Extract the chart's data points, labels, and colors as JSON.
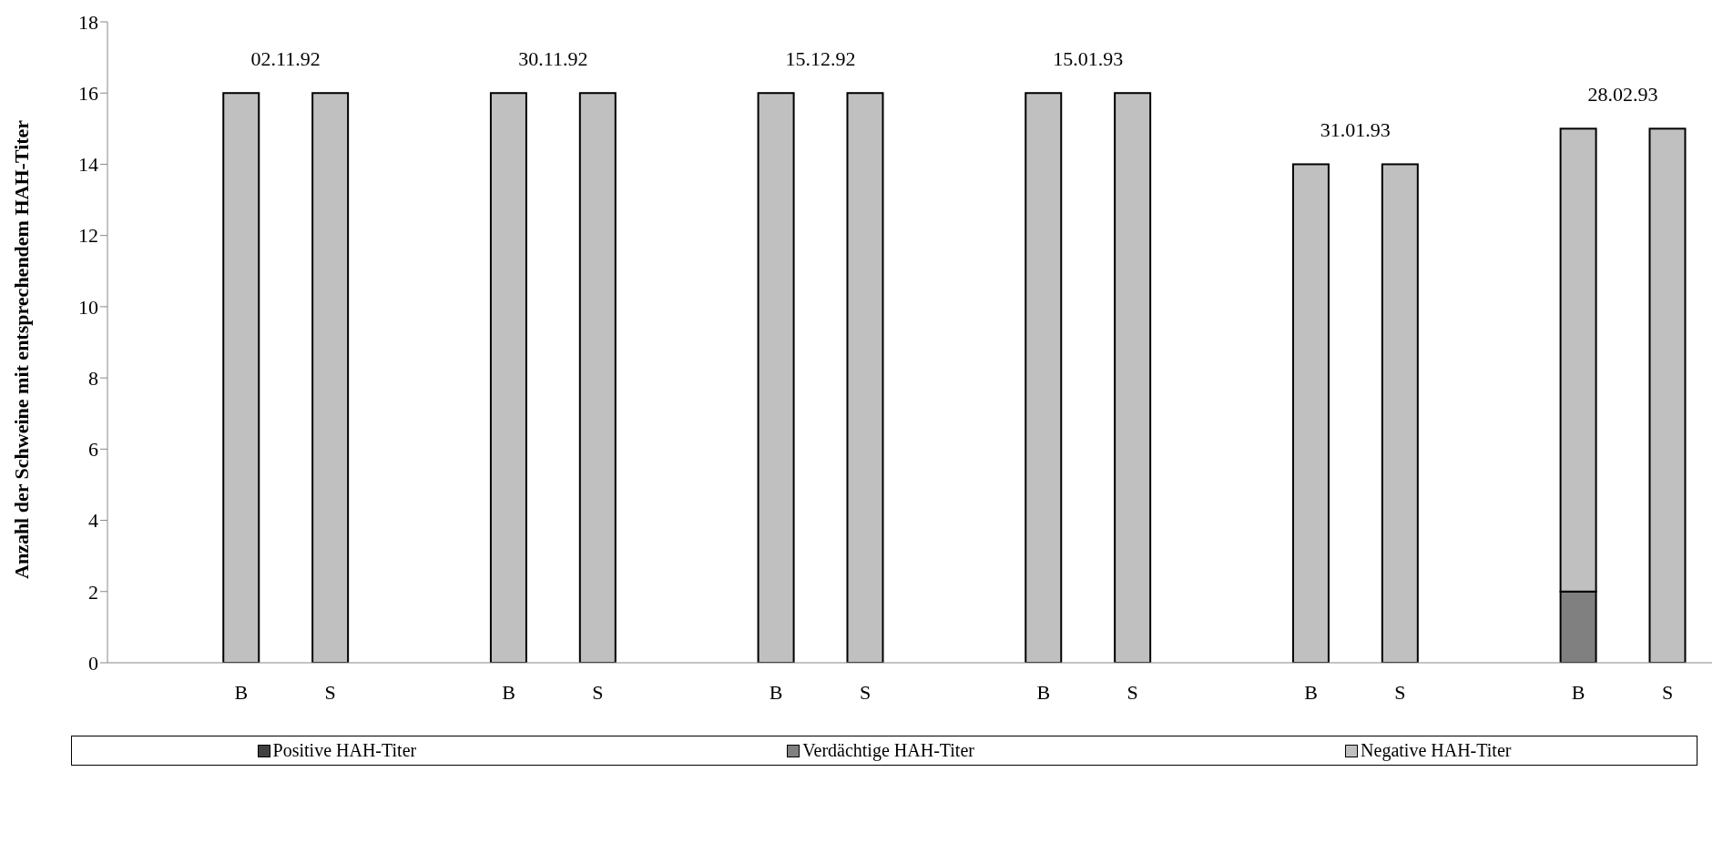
{
  "chart_data": {
    "type": "bar",
    "stacked": true,
    "ylabel": "Anzahl der Schweine mit entsprechendem HAH-Titer",
    "categories": [
      null,
      "B",
      "S",
      null,
      "B",
      "S",
      null,
      "B",
      "S",
      null,
      "B",
      "S",
      null,
      "B",
      "S",
      null,
      "B",
      "S"
    ],
    "series": [
      {
        "name": "Positive HAH-Titer",
        "color": "#404040",
        "values": [
          null,
          0,
          0,
          null,
          0,
          0,
          null,
          0,
          0,
          null,
          0,
          0,
          null,
          0,
          0,
          null,
          0,
          0
        ]
      },
      {
        "name": "Verdächtige HAH-Titer",
        "color": "#808080",
        "values": [
          null,
          0,
          0,
          null,
          0,
          0,
          null,
          0,
          0,
          null,
          0,
          0,
          null,
          0,
          0,
          null,
          2,
          0
        ]
      },
      {
        "name": "Negative HAH-Titer",
        "color": "#c0c0c0",
        "values": [
          null,
          16,
          16,
          null,
          16,
          16,
          null,
          16,
          16,
          null,
          16,
          16,
          null,
          14,
          14,
          null,
          13,
          15
        ]
      }
    ],
    "annotations": [
      "02.11.92",
      "30.11.92",
      "15.12.92",
      "15.01.93",
      "31.01.93",
      "28.02.93"
    ],
    "ylim": [
      0,
      18
    ],
    "yticks": [
      0,
      2,
      4,
      6,
      8,
      10,
      12,
      14,
      16,
      18
    ],
    "grid": false,
    "legend": "bottom"
  }
}
